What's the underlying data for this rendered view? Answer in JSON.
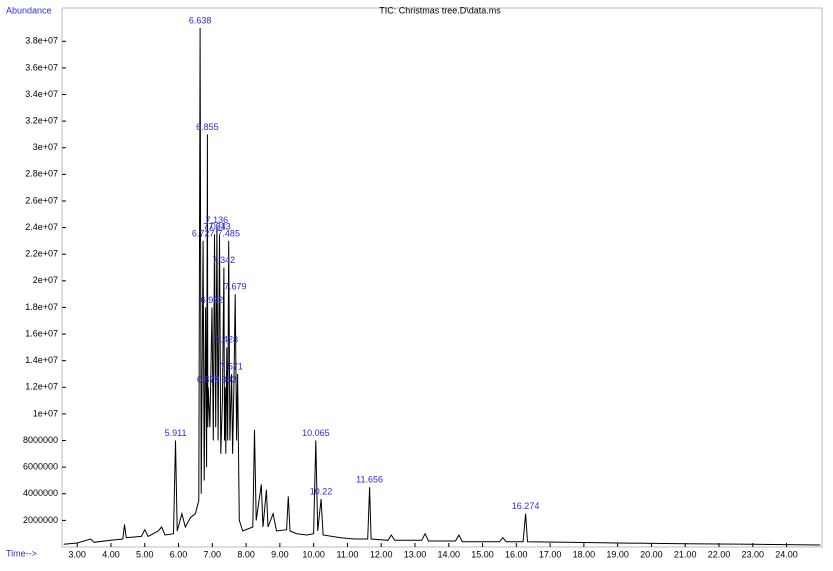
{
  "chart_data": {
    "type": "line",
    "title": "TIC: Christmas tree.D\\data.ms",
    "y_label": "Abundance",
    "x_label": "Time-->",
    "xlim": [
      2.55,
      25.05
    ],
    "ylim": [
      0,
      40500000
    ],
    "xticks": [
      {
        "value": 3,
        "label": "3.00"
      },
      {
        "value": 4,
        "label": "4.00"
      },
      {
        "value": 5,
        "label": "5.00"
      },
      {
        "value": 6,
        "label": "6.00"
      },
      {
        "value": 7,
        "label": "7.00"
      },
      {
        "value": 8,
        "label": "8.00"
      },
      {
        "value": 9,
        "label": "9.00"
      },
      {
        "value": 10,
        "label": "10.00"
      },
      {
        "value": 11,
        "label": "11.00"
      },
      {
        "value": 12,
        "label": "12.00"
      },
      {
        "value": 13,
        "label": "13.00"
      },
      {
        "value": 14,
        "label": "14.00"
      },
      {
        "value": 15,
        "label": "15.00"
      },
      {
        "value": 16,
        "label": "16.00"
      },
      {
        "value": 17,
        "label": "17.00"
      },
      {
        "value": 18,
        "label": "18.00"
      },
      {
        "value": 19,
        "label": "19.00"
      },
      {
        "value": 20,
        "label": "20.00"
      },
      {
        "value": 21,
        "label": "21.00"
      },
      {
        "value": 22,
        "label": "22.00"
      },
      {
        "value": 23,
        "label": "23.00"
      },
      {
        "value": 24,
        "label": "24.00"
      }
    ],
    "yticks": [
      2000000,
      4000000,
      6000000,
      8000000,
      {
        "value": 10000000,
        "label": "1e+07"
      },
      {
        "value": 12000000,
        "label": "1.2e+07"
      },
      {
        "value": 14000000,
        "label": "1.4e+07"
      },
      {
        "value": 16000000,
        "label": "1.6e+07"
      },
      {
        "value": 18000000,
        "label": "1.8e+07"
      },
      {
        "value": 20000000,
        "label": "2e+07"
      },
      {
        "value": 22000000,
        "label": "2.2e+07"
      },
      {
        "value": 24000000,
        "label": "2.4e+07"
      },
      {
        "value": 26000000,
        "label": "2.6e+07"
      },
      {
        "value": 28000000,
        "label": "2.8e+07"
      },
      {
        "value": 30000000,
        "label": "3e+07"
      },
      {
        "value": 32000000,
        "label": "3.2e+07"
      },
      {
        "value": 34000000,
        "label": "3.4e+07"
      },
      {
        "value": 36000000,
        "label": "3.6e+07"
      },
      {
        "value": 38000000,
        "label": "3.8e+07"
      }
    ],
    "series": [
      {
        "color": "#000000",
        "x": [
          2.6,
          3.0,
          3.4,
          3.5,
          4.0,
          4.35,
          4.4,
          4.45,
          4.9,
          5.0,
          5.1,
          5.4,
          5.5,
          5.6,
          5.85,
          5.911,
          5.96,
          6.1,
          6.2,
          6.35,
          6.5,
          6.6,
          6.638,
          6.67,
          6.727,
          6.76,
          6.8,
          6.83,
          6.855,
          6.865,
          6.878,
          6.93,
          6.992,
          7.03,
          7.064,
          7.1,
          7.136,
          7.17,
          7.213,
          7.25,
          7.3,
          7.342,
          7.36,
          7.383,
          7.4,
          7.428,
          7.455,
          7.485,
          7.52,
          7.571,
          7.6,
          7.64,
          7.679,
          7.72,
          7.75,
          7.8,
          7.9,
          8.2,
          8.25,
          8.3,
          8.45,
          8.5,
          8.6,
          8.65,
          8.8,
          8.9,
          9.2,
          9.25,
          9.3,
          9.5,
          9.8,
          10.0,
          10.065,
          10.12,
          10.22,
          10.28,
          10.8,
          11.2,
          11.6,
          11.656,
          11.7,
          12.2,
          12.3,
          12.4,
          13.2,
          13.3,
          13.4,
          14.2,
          14.3,
          14.4,
          15.5,
          15.6,
          15.7,
          16.2,
          16.274,
          16.33,
          17.5,
          19,
          21,
          23,
          25
        ],
        "values": [
          200000,
          300000,
          600000,
          350000,
          500000,
          600000,
          1700000,
          700000,
          800000,
          1300000,
          800000,
          1200000,
          1500000,
          900000,
          1000000,
          8000000,
          1200000,
          2500000,
          1500000,
          2200000,
          2500000,
          3500000,
          39000000,
          4000000,
          23000000,
          5000000,
          18000000,
          6000000,
          31000000,
          9000000,
          12000000,
          9000000,
          18000000,
          8000000,
          23500000,
          9000000,
          24000000,
          8000000,
          23500000,
          7000000,
          11000000,
          21000000,
          8000000,
          12000000,
          7000000,
          15000000,
          8000000,
          23000000,
          8000000,
          13000000,
          7000000,
          12000000,
          19000000,
          8000000,
          13000000,
          2000000,
          1200000,
          1500000,
          8800000,
          2000000,
          4700000,
          1500000,
          4300000,
          1500000,
          2500000,
          1200000,
          1300000,
          3800000,
          1200000,
          1000000,
          900000,
          1000000,
          8000000,
          1200000,
          3600000,
          900000,
          700000,
          600000,
          600000,
          4500000,
          600000,
          500000,
          900000,
          500000,
          500000,
          1000000,
          450000,
          450000,
          900000,
          400000,
          400000,
          700000,
          400000,
          400000,
          2500000,
          400000,
          350000,
          300000,
          250000,
          200000,
          150000
        ]
      }
    ],
    "peaks": [
      {
        "time": 6.638,
        "abundance": 39000000
      },
      {
        "time": 6.855,
        "abundance": 31000000
      },
      {
        "time": 7.136,
        "abundance": 24000000
      },
      {
        "time": 7.213,
        "abundance": 23500000
      },
      {
        "time": 7.064,
        "abundance": 23500000
      },
      {
        "time": 6.727,
        "abundance": 23000000
      },
      {
        "time": 7.485,
        "abundance": 23000000
      },
      {
        "time": 7.342,
        "abundance": 21000000
      },
      {
        "time": 6.992,
        "abundance": 18000000
      },
      {
        "time": 7.679,
        "abundance": 19000000
      },
      {
        "time": 7.428,
        "abundance": 15000000
      },
      {
        "time": 7.571,
        "abundance": 13000000
      },
      {
        "time": 7.383,
        "abundance": 12000000
      },
      {
        "time": 6.878,
        "abundance": 12000000
      },
      {
        "time": 5.911,
        "abundance": 8000000
      },
      {
        "time": 10.065,
        "abundance": 8000000
      },
      {
        "time": 10.22,
        "abundance": 3600000
      },
      {
        "time": 11.656,
        "abundance": 4500000
      },
      {
        "time": 16.274,
        "abundance": 2500000
      }
    ],
    "peak_color": "#2a2ae0"
  }
}
